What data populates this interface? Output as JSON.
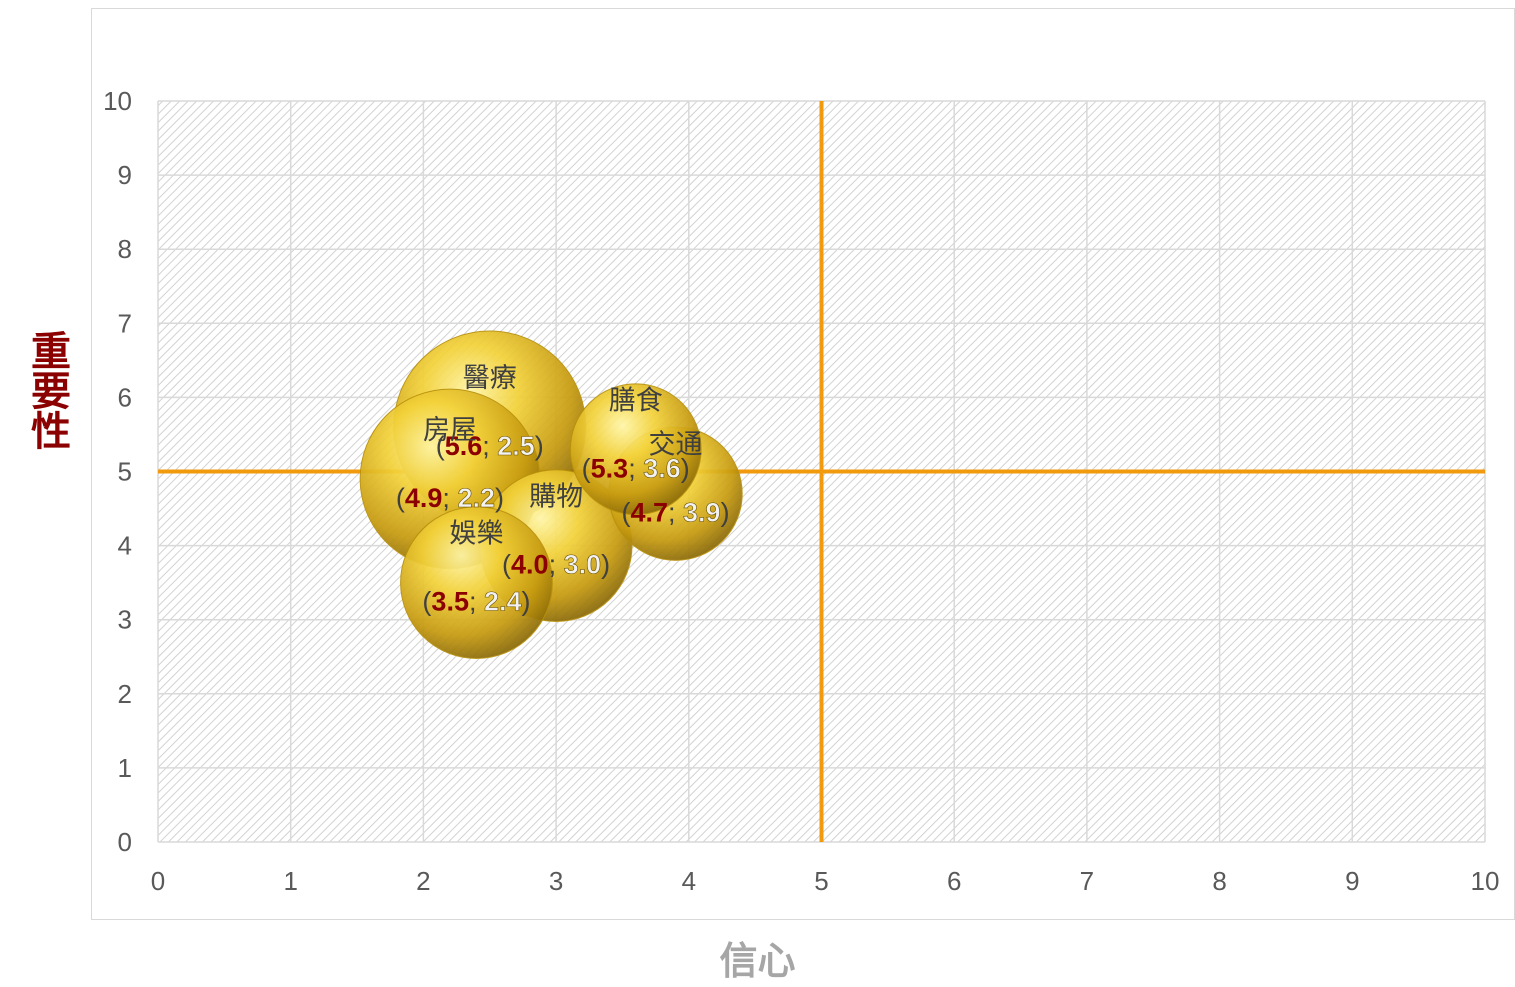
{
  "chart_data": {
    "type": "bubble",
    "xlabel": "信心",
    "ylabel": "重要性",
    "xlim": [
      0,
      10
    ],
    "ylim": [
      0,
      10
    ],
    "x_ticks": [
      "0",
      "1",
      "2",
      "3",
      "4",
      "5",
      "6",
      "7",
      "8",
      "9",
      "10"
    ],
    "y_ticks": [
      "0",
      "1",
      "2",
      "3",
      "4",
      "5",
      "6",
      "7",
      "8",
      "9",
      "10"
    ],
    "grid": true,
    "reference_lines": {
      "x": 5,
      "y": 5,
      "color": "#f29a0e"
    },
    "bubble_color": "#d4a50d",
    "points": [
      {
        "name": "醫療",
        "x": 2.5,
        "y": 5.6,
        "size": 5.6,
        "label_a": "5.6",
        "label_b": "2.5"
      },
      {
        "name": "房屋",
        "x": 2.2,
        "y": 4.9,
        "size": 4.9,
        "label_a": "4.9",
        "label_b": "2.2"
      },
      {
        "name": "膳食",
        "x": 3.6,
        "y": 5.3,
        "size": 2.6,
        "label_a": "5.3",
        "label_b": "3.6"
      },
      {
        "name": "交通",
        "x": 3.9,
        "y": 4.7,
        "size": 2.7,
        "label_a": "4.7",
        "label_b": "3.9"
      },
      {
        "name": "購物",
        "x": 3.0,
        "y": 4.0,
        "size": 3.5,
        "label_a": "4.0",
        "label_b": "3.0"
      },
      {
        "name": "娛樂",
        "x": 2.4,
        "y": 3.5,
        "size": 3.5,
        "label_a": "3.5",
        "label_b": "2.4"
      }
    ]
  }
}
